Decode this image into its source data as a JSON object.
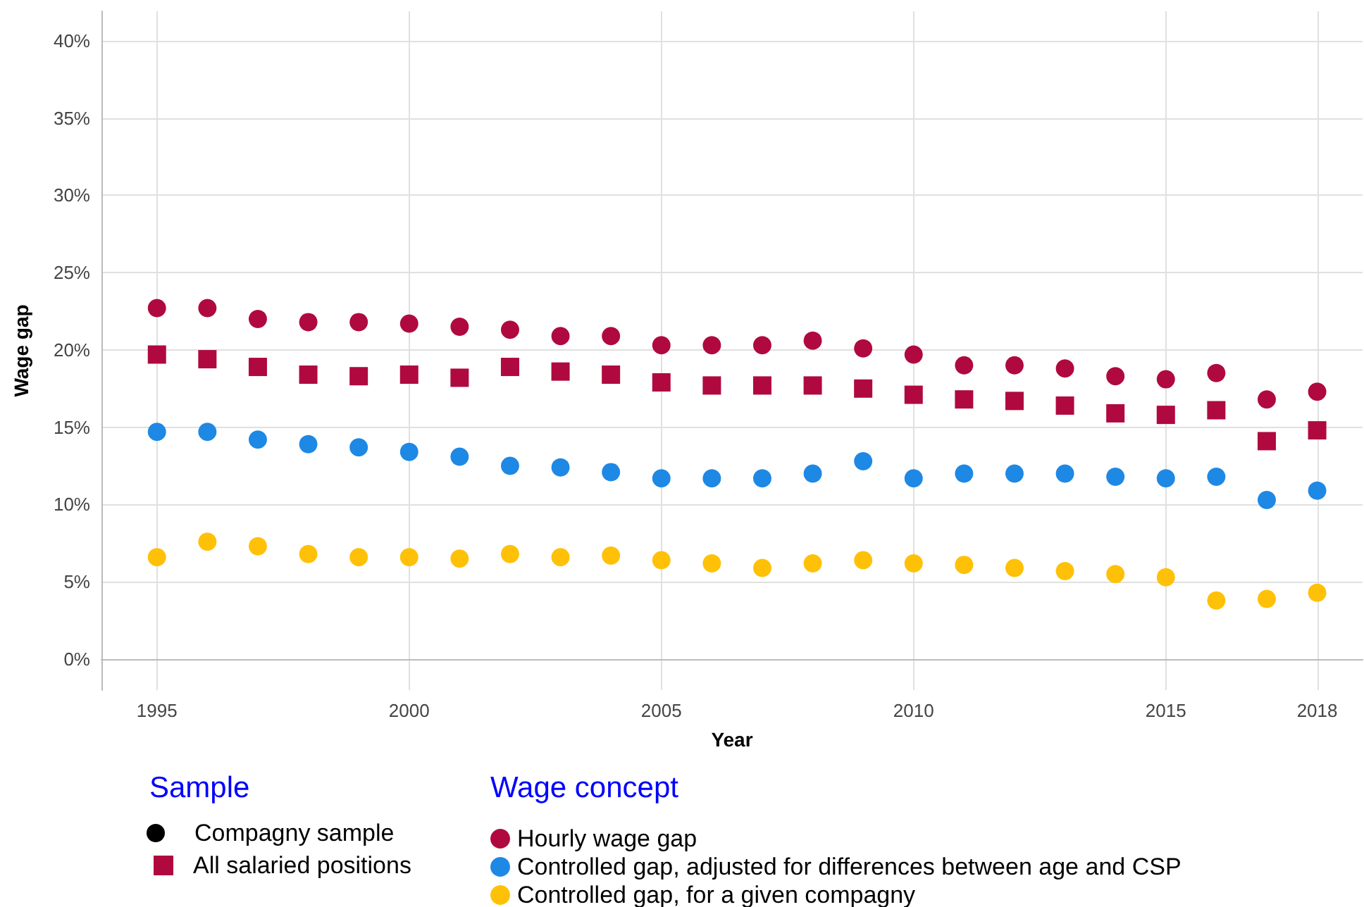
{
  "chart_data": {
    "type": "scatter",
    "xlabel": "Year",
    "ylabel": "Wage gap",
    "x": [
      1995,
      1996,
      1997,
      1998,
      1999,
      2000,
      2001,
      2002,
      2003,
      2004,
      2005,
      2006,
      2007,
      2008,
      2009,
      2010,
      2011,
      2012,
      2013,
      2014,
      2015,
      2016,
      2017,
      2018
    ],
    "xlim": [
      1993.9,
      2018.9
    ],
    "xticks": [
      1995,
      2000,
      2005,
      2010,
      2015,
      2018
    ],
    "ylim": [
      -2,
      41.9
    ],
    "yticks": [
      {
        "value": 0,
        "label": "0%"
      },
      {
        "value": 5,
        "label": "5%"
      },
      {
        "value": 10,
        "label": "10%"
      },
      {
        "value": 15,
        "label": "15%"
      },
      {
        "value": 20,
        "label": "20%"
      },
      {
        "value": 25,
        "label": "25%"
      },
      {
        "value": 30,
        "label": "30%"
      },
      {
        "value": 35,
        "label": "35%"
      },
      {
        "value": 40,
        "label": "40%"
      }
    ],
    "grid": true,
    "legend": "bottom",
    "legend_title": "Wage concept",
    "annotations": [
      "Sample",
      "Compagny sample"
    ],
    "series": [
      {
        "name": "Hourly wage gap",
        "color": "#b0093f",
        "marker": "circle",
        "values": [
          22.7,
          22.7,
          22.0,
          21.8,
          21.8,
          21.7,
          21.5,
          21.3,
          20.9,
          20.9,
          20.3,
          20.3,
          20.3,
          20.6,
          20.1,
          19.7,
          19.0,
          19.0,
          18.8,
          18.3,
          18.1,
          18.5,
          16.8,
          17.3
        ]
      },
      {
        "name": "All salaried positions",
        "color": "#b0093f",
        "marker": "square",
        "values": [
          19.7,
          19.4,
          18.9,
          18.4,
          18.3,
          18.4,
          18.2,
          18.9,
          18.6,
          18.4,
          17.9,
          17.7,
          17.7,
          17.7,
          17.5,
          17.1,
          16.8,
          16.7,
          16.4,
          15.9,
          15.8,
          16.1,
          14.1,
          14.8
        ]
      },
      {
        "name": "Controlled gap, adjusted for differences between age and CSP",
        "color": "#1e88e5",
        "marker": "circle",
        "values": [
          14.7,
          14.7,
          14.2,
          13.9,
          13.7,
          13.4,
          13.1,
          12.5,
          12.4,
          12.1,
          11.7,
          11.7,
          11.7,
          12.0,
          12.8,
          11.7,
          12.0,
          12.0,
          12.0,
          11.8,
          11.7,
          11.8,
          10.3,
          10.9
        ]
      },
      {
        "name": "Controlled gap, for a given compagny",
        "color": "#ffc107",
        "marker": "circle",
        "values": [
          6.6,
          7.6,
          7.3,
          6.8,
          6.6,
          6.6,
          6.5,
          6.8,
          6.6,
          6.7,
          6.4,
          6.2,
          5.9,
          6.2,
          6.4,
          6.2,
          6.1,
          5.9,
          5.7,
          5.5,
          5.3,
          3.8,
          3.9,
          4.3
        ]
      }
    ]
  }
}
